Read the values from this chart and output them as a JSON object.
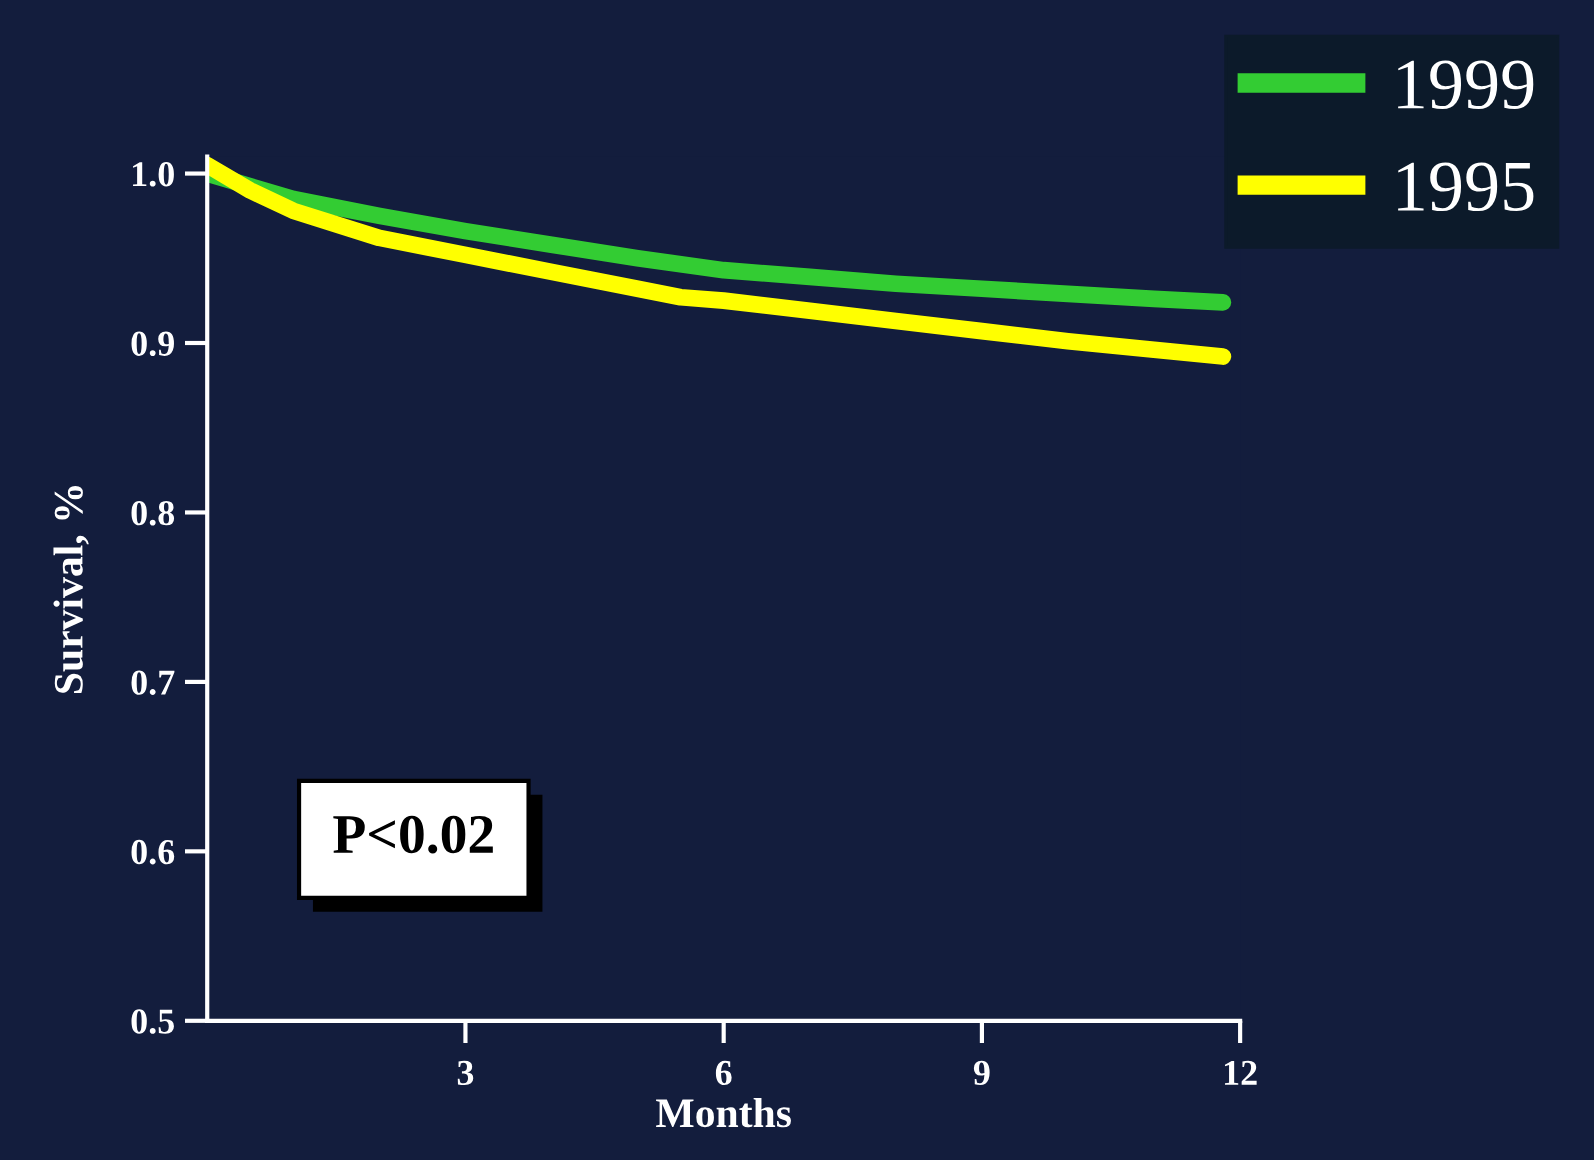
{
  "chart_data": {
    "type": "line",
    "xlabel": "Months",
    "ylabel": "Survival, %",
    "xlim": [
      0,
      12
    ],
    "ylim": [
      0.5,
      1.01
    ],
    "xticks": [
      3,
      6,
      9,
      12
    ],
    "yticks": [
      {
        "value": 0.5,
        "label": "0.5"
      },
      {
        "value": 0.6,
        "label": "0.6"
      },
      {
        "value": 0.7,
        "label": "0.7"
      },
      {
        "value": 0.8,
        "label": "0.8"
      },
      {
        "value": 0.9,
        "label": "0.9"
      },
      {
        "value": 1.0,
        "label": "1.0"
      }
    ],
    "series": [
      {
        "name": "1999",
        "color": "#33cc33",
        "x": [
          0,
          1,
          2,
          3,
          4,
          5,
          6,
          7,
          8,
          9,
          10,
          11,
          11.8
        ],
        "values": [
          1.0,
          0.985,
          0.975,
          0.966,
          0.958,
          0.95,
          0.943,
          0.939,
          0.935,
          0.932,
          0.929,
          0.926,
          0.924
        ]
      },
      {
        "name": "1995",
        "color": "#ffff00",
        "x": [
          0,
          0.5,
          1,
          2,
          3,
          4,
          5,
          5.5,
          6,
          7,
          8,
          9,
          10,
          11,
          11.8
        ],
        "values": [
          1.005,
          0.99,
          0.978,
          0.962,
          0.952,
          0.942,
          0.932,
          0.927,
          0.925,
          0.919,
          0.913,
          0.907,
          0.901,
          0.896,
          0.892
        ]
      }
    ],
    "annotations": [
      "P<0.02"
    ],
    "legend": "top right",
    "grid": false,
    "line_style": "solid",
    "marker": "none"
  }
}
